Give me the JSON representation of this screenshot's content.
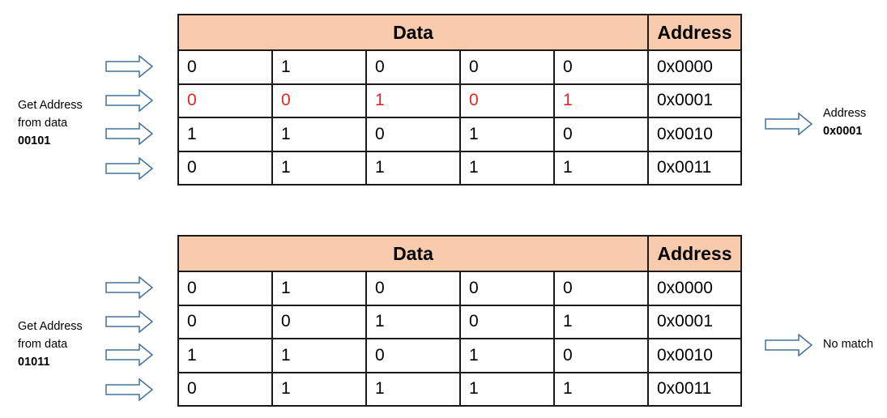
{
  "headers": {
    "data": "Data",
    "address": "Address"
  },
  "panels": [
    {
      "query_label_line1": "Get Address",
      "query_label_line2": "from data",
      "query_bits": "00101",
      "rows": [
        {
          "bits": [
            "0",
            "1",
            "0",
            "0",
            "0"
          ],
          "address": "0x0000",
          "match": false
        },
        {
          "bits": [
            "0",
            "0",
            "1",
            "0",
            "1"
          ],
          "address": "0x0001",
          "match": true
        },
        {
          "bits": [
            "1",
            "1",
            "0",
            "1",
            "0"
          ],
          "address": "0x0010",
          "match": false
        },
        {
          "bits": [
            "0",
            "1",
            "1",
            "1",
            "1"
          ],
          "address": "0x0011",
          "match": false
        }
      ],
      "result_label": "Address",
      "result_value": "0x0001"
    },
    {
      "query_label_line1": "Get Address",
      "query_label_line2": "from data",
      "query_bits": "01011",
      "rows": [
        {
          "bits": [
            "0",
            "1",
            "0",
            "0",
            "0"
          ],
          "address": "0x0000",
          "match": false
        },
        {
          "bits": [
            "0",
            "0",
            "1",
            "0",
            "1"
          ],
          "address": "0x0001",
          "match": false
        },
        {
          "bits": [
            "1",
            "1",
            "0",
            "1",
            "0"
          ],
          "address": "0x0010",
          "match": false
        },
        {
          "bits": [
            "0",
            "1",
            "1",
            "1",
            "1"
          ],
          "address": "0x0011",
          "match": false
        }
      ],
      "result_label": "No match",
      "result_value": ""
    }
  ],
  "colors": {
    "header_fill": "#f8cbad",
    "match_text": "#e32626",
    "arrow_stroke": "#41719c"
  },
  "icons": {
    "row_arrow": "right-arrow-icon",
    "result_arrow": "right-arrow-icon"
  }
}
